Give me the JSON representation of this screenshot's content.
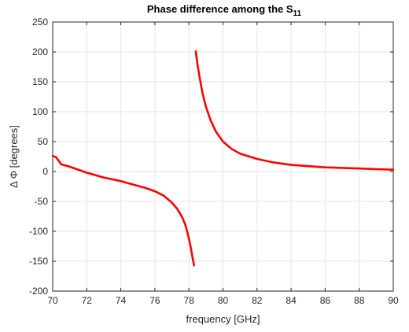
{
  "chart_data": {
    "type": "line",
    "title": {
      "text": "Phase difference among the S",
      "subscript": "11"
    },
    "xlabel": "frequency [GHz]",
    "ylabel": "Δ Φ [degrees]",
    "xlim": [
      70,
      90
    ],
    "ylim": [
      -200,
      250
    ],
    "xticks": [
      70,
      72,
      74,
      76,
      78,
      80,
      82,
      84,
      86,
      88,
      90
    ],
    "yticks": [
      -200,
      -150,
      -100,
      -50,
      0,
      50,
      100,
      150,
      200,
      250
    ],
    "grid": true,
    "legend": "none",
    "series": [
      {
        "color": "#ff0000",
        "segments": [
          {
            "x": [
              70.0,
              70.2,
              70.3,
              70.5,
              71.0,
              72.0,
              73.0,
              74.0,
              75.0,
              75.5,
              76.0,
              76.5,
              77.0,
              77.3,
              77.6,
              77.8,
              78.0,
              78.1,
              78.2,
              78.3
            ],
            "y": [
              26,
              24,
              20,
              12,
              8,
              -2,
              -10,
              -16,
              -24,
              -28,
              -33,
              -40,
              -52,
              -62,
              -76,
              -90,
              -112,
              -126,
              -142,
              -157
            ]
          },
          {
            "x": [
              78.4,
              78.5,
              78.6,
              78.8,
              79.0,
              79.3,
              79.6,
              80.0,
              80.5,
              81.0,
              82.0,
              83.0,
              84.0,
              85.0,
              86.0,
              87.0,
              88.0,
              89.0,
              90.0
            ],
            "y": [
              201,
              180,
              162,
              131,
              108,
              84,
              66,
              50,
              38,
              30,
              21,
              15,
              11,
              9,
              7,
              6,
              5,
              4,
              3
            ]
          }
        ]
      }
    ],
    "colors": {
      "line": "#ff0000",
      "grid": "#e6e6e6",
      "axis": "#262626"
    }
  }
}
